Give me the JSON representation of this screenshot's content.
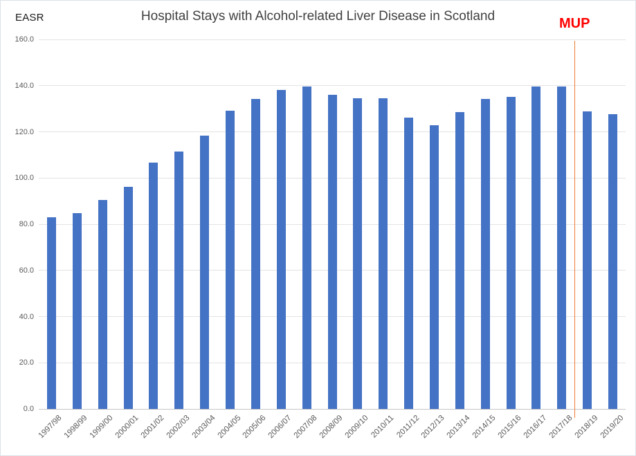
{
  "chart_data": {
    "type": "bar",
    "title": "Hospital Stays with Alcohol-related Liver Disease in Scotland",
    "ylabel": "EASR",
    "xlabel": "",
    "categories": [
      "1997/98",
      "1998/99",
      "1999/00",
      "2000/01",
      "2001/02",
      "2002/03",
      "2003/04",
      "2004/05",
      "2005/06",
      "2006/07",
      "2007/08",
      "2008/09",
      "2009/10",
      "2010/11",
      "2011/12",
      "2012/13",
      "2013/14",
      "2014/15",
      "2015/16",
      "2016/17",
      "2017/18",
      "2018/19",
      "2019/20"
    ],
    "values": [
      83.0,
      84.8,
      90.5,
      96.3,
      106.8,
      111.4,
      118.4,
      129.0,
      134.1,
      138.2,
      139.7,
      135.9,
      134.5,
      134.5,
      126.1,
      122.9,
      128.5,
      134.1,
      135.0,
      139.5,
      139.5,
      128.7,
      127.7
    ],
    "ylim": [
      0,
      160
    ],
    "ytick_step": 20,
    "ytick_decimals": 1,
    "grid": "horizontal",
    "legend": "none",
    "annotation": {
      "label": "MUP",
      "after_category": "2017/18",
      "line_color": "#ED7D31",
      "label_color": "#FF0000"
    },
    "colors": {
      "bar": "#4472C4",
      "gridline": "#E3E3E3",
      "axis_line": "#C6C6C6",
      "tick_text": "#595959",
      "title_text": "#404040",
      "ylabel_text": "#1A1A1A",
      "background": "#FFFFFF",
      "frame_border": "#DBE1E9"
    }
  }
}
